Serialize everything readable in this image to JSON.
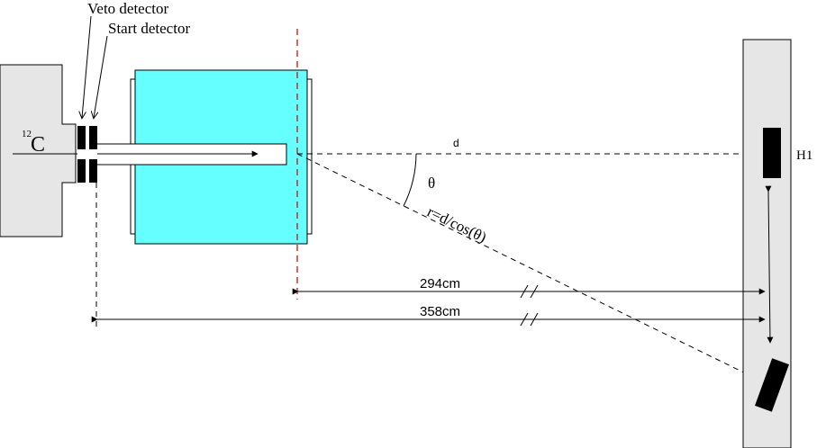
{
  "labels": {
    "veto_detector": "Veto detector",
    "start_detector": "Start detector",
    "beam_isotope_mass": "12",
    "beam_isotope_symbol": "C",
    "distance_d": "d",
    "angle_theta": "θ",
    "r_formula": "r=d/cos(θ)",
    "detector_h1": "H1",
    "dist_294": "294cm",
    "dist_358": "358cm"
  },
  "colors": {
    "target_fill": "#66ffff",
    "gray_fill": "#e6e6e6",
    "outline": "#000000",
    "red_dashed": "#cc0000",
    "detector_fill": "#000000"
  }
}
